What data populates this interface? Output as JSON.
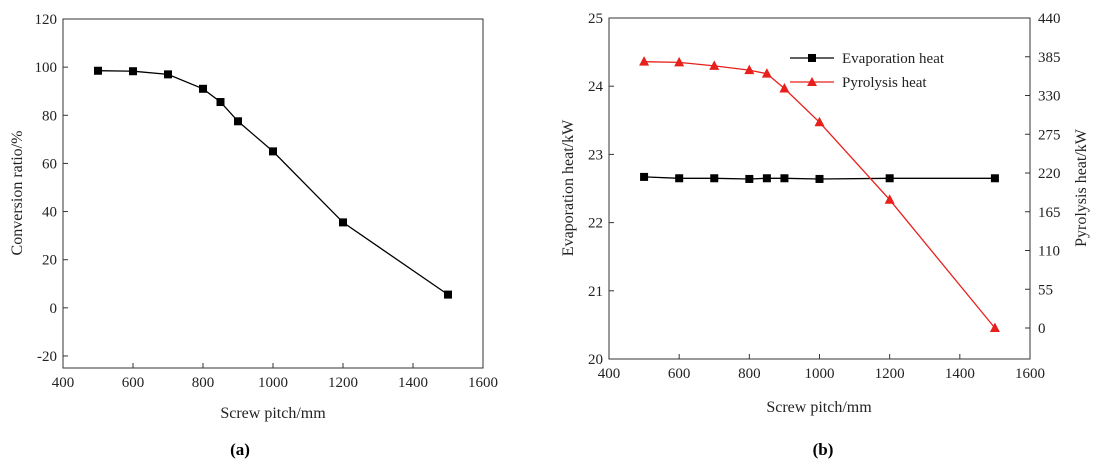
{
  "chart_data": [
    {
      "panel": "(a)",
      "type": "line",
      "xlabel": "Screw pitch/mm",
      "ylabel": "Conversion ratio/%",
      "xlim": [
        400,
        1600
      ],
      "ylim": [
        -25,
        120
      ],
      "xticks": [
        400,
        600,
        800,
        1000,
        1200,
        1400,
        1600
      ],
      "yticks": [
        -20,
        0,
        20,
        40,
        60,
        80,
        100,
        120
      ],
      "grid": false,
      "series": [
        {
          "color": "#000000",
          "marker": "square",
          "x": [
            500,
            600,
            700,
            800,
            850,
            900,
            1000,
            1200,
            1500
          ],
          "y": [
            98.5,
            98.3,
            97.0,
            91.0,
            85.5,
            77.5,
            65.0,
            35.5,
            5.5
          ]
        }
      ]
    },
    {
      "panel": "(b)",
      "type": "line",
      "xlabel": "Screw pitch/mm",
      "ylabel": "Evaporation heat/kW",
      "y2label": "Pyrolysis heat/kW",
      "xlim": [
        400,
        1600
      ],
      "ylim": [
        20,
        25
      ],
      "y2lim": [
        -44.0,
        440
      ],
      "xticks": [
        400,
        600,
        800,
        1000,
        1200,
        1400,
        1600
      ],
      "yticks": [
        20,
        21,
        22,
        23,
        24,
        25
      ],
      "y2ticks": [
        0,
        55,
        110,
        165,
        220,
        275,
        330,
        385,
        440
      ],
      "grid": false,
      "legend_position": "top-right",
      "series": [
        {
          "name": "Evaporation heat",
          "axis": "left",
          "color": "#000000",
          "marker": "square",
          "x": [
            500,
            600,
            700,
            800,
            850,
            900,
            1000,
            1200,
            1500
          ],
          "y": [
            22.67,
            22.65,
            22.65,
            22.64,
            22.65,
            22.65,
            22.64,
            22.65,
            22.65
          ]
        },
        {
          "name": "Pyrolysis heat",
          "axis": "right",
          "color": "#e8201c",
          "marker": "triangle",
          "x": [
            500,
            600,
            700,
            800,
            850,
            900,
            1000,
            1200,
            1500
          ],
          "y": [
            378,
            377,
            372,
            366,
            361,
            340,
            292,
            182,
            0
          ]
        }
      ]
    }
  ]
}
